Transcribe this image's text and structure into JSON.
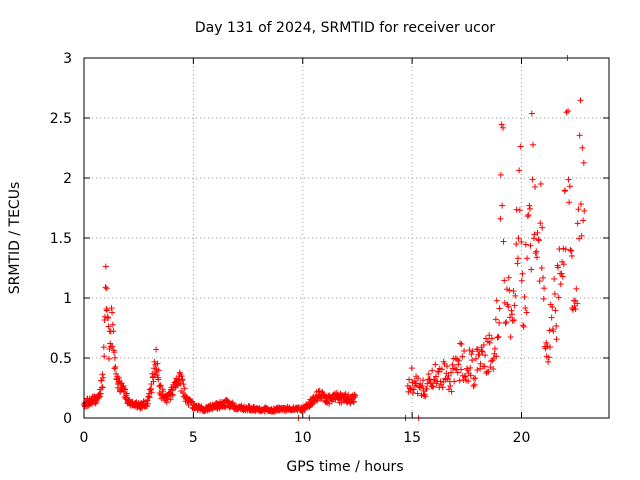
{
  "chart_data": {
    "type": "scatter",
    "title": "Day 131 of 2024, SRMTID for receiver ucor",
    "xlabel": "GPS time / hours",
    "ylabel": "SRMTID / TECUs",
    "xlim": [
      0,
      24
    ],
    "ylim": [
      0,
      3
    ],
    "xticks": [
      0,
      5,
      10,
      15,
      20
    ],
    "yticks": [
      0,
      0.5,
      1,
      1.5,
      2,
      2.5,
      3
    ],
    "xtick_labels": [
      "0",
      "5",
      "10",
      "15",
      "20"
    ],
    "ytick_labels": [
      "0",
      "0.5",
      "1",
      "1.5",
      "2",
      "2.5",
      "3"
    ],
    "grid": true,
    "marker": "+",
    "color": "#ff0000",
    "series": [
      {
        "name": "SRMTID",
        "profile": [
          [
            0.0,
            0.12
          ],
          [
            0.3,
            0.14
          ],
          [
            0.6,
            0.17
          ],
          [
            0.85,
            0.3
          ],
          [
            0.95,
            0.7
          ],
          [
            1.0,
            1.22
          ],
          [
            1.05,
            0.9
          ],
          [
            1.15,
            0.55
          ],
          [
            1.25,
            0.75
          ],
          [
            1.35,
            0.6
          ],
          [
            1.5,
            0.3
          ],
          [
            1.7,
            0.25
          ],
          [
            1.9,
            0.2
          ],
          [
            2.1,
            0.12
          ],
          [
            2.5,
            0.1
          ],
          [
            2.9,
            0.12
          ],
          [
            3.1,
            0.28
          ],
          [
            3.3,
            0.47
          ],
          [
            3.5,
            0.22
          ],
          [
            3.8,
            0.15
          ],
          [
            4.1,
            0.25
          ],
          [
            4.4,
            0.32
          ],
          [
            4.7,
            0.15
          ],
          [
            5.0,
            0.1
          ],
          [
            5.5,
            0.07
          ],
          [
            6.0,
            0.1
          ],
          [
            6.5,
            0.12
          ],
          [
            7.0,
            0.09
          ],
          [
            8.0,
            0.07
          ],
          [
            9.0,
            0.07
          ],
          [
            9.5,
            0.08
          ],
          [
            10.0,
            0.07
          ],
          [
            10.5,
            0.15
          ],
          [
            10.8,
            0.2
          ],
          [
            11.0,
            0.15
          ],
          [
            11.5,
            0.17
          ],
          [
            12.0,
            0.16
          ],
          [
            12.4,
            0.16
          ]
        ],
        "profile_late": [
          [
            14.8,
            0.22
          ],
          [
            15.0,
            0.3
          ],
          [
            15.3,
            0.28
          ],
          [
            15.6,
            0.22
          ],
          [
            15.9,
            0.28
          ],
          [
            16.3,
            0.35
          ],
          [
            16.7,
            0.3
          ],
          [
            17.0,
            0.38
          ],
          [
            17.3,
            0.45
          ],
          [
            17.6,
            0.42
          ],
          [
            17.9,
            0.38
          ],
          [
            18.2,
            0.45
          ],
          [
            18.5,
            0.5
          ],
          [
            18.8,
            0.55
          ],
          [
            19.0,
            0.9
          ],
          [
            19.1,
            2.3
          ],
          [
            19.2,
            1.2
          ],
          [
            19.5,
            0.75
          ],
          [
            19.8,
            1.5
          ],
          [
            19.9,
            1.85
          ],
          [
            20.1,
            0.9
          ],
          [
            20.4,
            1.6
          ],
          [
            20.5,
            1.85
          ],
          [
            20.7,
            1.1
          ],
          [
            20.9,
            1.45
          ],
          [
            21.1,
            0.5
          ],
          [
            21.3,
            0.75
          ],
          [
            21.6,
            0.85
          ],
          [
            21.9,
            1.3
          ],
          [
            22.1,
            2.2
          ],
          [
            22.3,
            1.0
          ],
          [
            22.5,
            0.8
          ],
          [
            22.7,
            2.2
          ],
          [
            22.9,
            1.2
          ]
        ],
        "isolated_points": [
          [
            9.8,
            0.0
          ],
          [
            10.3,
            0.0
          ],
          [
            14.7,
            0.0
          ],
          [
            15.3,
            0.0
          ]
        ]
      }
    ]
  }
}
